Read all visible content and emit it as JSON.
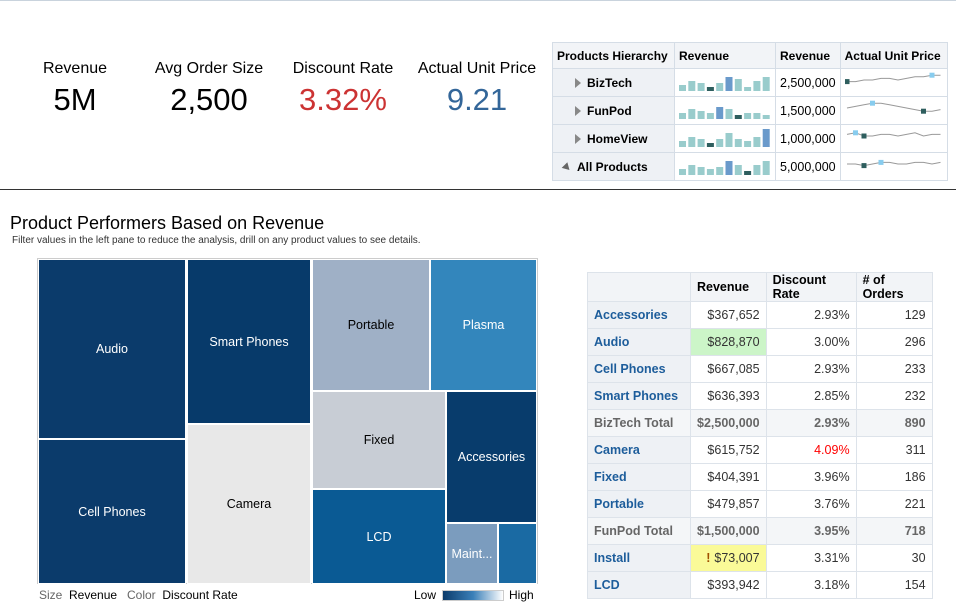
{
  "kpis": [
    {
      "label": "Revenue",
      "value": "5M",
      "color": "#000000"
    },
    {
      "label": "Avg Order Size",
      "value": "2,500",
      "color": "#000000"
    },
    {
      "label": "Discount Rate",
      "value": "3.32%",
      "color": "#cc3333"
    },
    {
      "label": "Actual Unit Price",
      "value": "9.21",
      "color": "#336699"
    }
  ],
  "hierarchy": {
    "headers": [
      "Products Hierarchy",
      "Revenue",
      "Revenue",
      "Actual Unit Price"
    ],
    "rows": [
      {
        "name": "BizTech",
        "revenue": "2,500,000",
        "expanded": false,
        "bars": [
          3,
          5,
          4,
          2,
          4,
          7,
          6,
          2,
          5,
          7,
          6,
          4
        ],
        "line": [
          4,
          4,
          5,
          5,
          6,
          6,
          5,
          6,
          7,
          7,
          8,
          8
        ]
      },
      {
        "name": "FunPod",
        "revenue": "1,500,000",
        "expanded": false,
        "bars": [
          3,
          5,
          4,
          3,
          6,
          5,
          2,
          3,
          3,
          2,
          2,
          2
        ],
        "line": [
          5,
          6,
          7,
          8,
          8,
          7,
          6,
          5,
          4,
          3,
          3,
          4
        ]
      },
      {
        "name": "HomeView",
        "revenue": "1,000,000",
        "expanded": false,
        "bars": [
          3,
          5,
          4,
          2,
          4,
          7,
          4,
          3,
          5,
          9,
          6,
          4
        ],
        "line": [
          6,
          7,
          5,
          5,
          6,
          6,
          5,
          6,
          7,
          5,
          6,
          6
        ]
      },
      {
        "name": "All Products",
        "revenue": "5,000,000",
        "expanded": true,
        "bars": [
          3,
          5,
          4,
          3,
          4,
          7,
          5,
          2,
          5,
          7,
          6,
          4
        ],
        "line": [
          5,
          5,
          4,
          5,
          6,
          6,
          5,
          5,
          6,
          6,
          5,
          6
        ]
      }
    ]
  },
  "treemap": {
    "title": "Product Performers Based on Revenue",
    "subtitle": "Filter values in the left pane to reduce the analysis, drill on any product values to see details.",
    "tiles": [
      {
        "label": "Audio",
        "color": "#0b3b6b",
        "text": "#ffffff"
      },
      {
        "label": "Cell Phones",
        "color": "#0b3b6b",
        "text": "#ffffff"
      },
      {
        "label": "Smart Phones",
        "color": "#073a6a",
        "text": "#ffffff"
      },
      {
        "label": "Camera",
        "color": "#e8e8e8",
        "text": "#000000"
      },
      {
        "label": "Portable",
        "color": "#9fb0c6",
        "text": "#000000"
      },
      {
        "label": "Plasma",
        "color": "#3386bc",
        "text": "#ffffff"
      },
      {
        "label": "Fixed",
        "color": "#c8cdd5",
        "text": "#000000"
      },
      {
        "label": "Accessories",
        "color": "#083c6c",
        "text": "#ffffff"
      },
      {
        "label": "LCD",
        "color": "#0a5a94",
        "text": "#ffffff"
      },
      {
        "label": "Maint...",
        "color": "#7b9cbe",
        "text": "#ffffff"
      },
      {
        "label": "",
        "color": "#1a6aa3",
        "text": "#ffffff"
      }
    ],
    "legend": {
      "size_label": "Size",
      "size_value": "Revenue",
      "color_label": "Color",
      "color_value": "Discount Rate",
      "low": "Low",
      "high": "High"
    }
  },
  "table": {
    "headers": [
      "",
      "Revenue",
      "Discount Rate",
      "# of Orders"
    ],
    "rows": [
      {
        "name": "Accessories",
        "revenue": "$367,652",
        "discount": "2.93%",
        "orders": "129"
      },
      {
        "name": "Audio",
        "revenue": "$828,870",
        "discount": "3.00%",
        "orders": "296",
        "highlight": "#ccf5c8"
      },
      {
        "name": "Cell Phones",
        "revenue": "$667,085",
        "discount": "2.93%",
        "orders": "233"
      },
      {
        "name": "Smart Phones",
        "revenue": "$636,393",
        "discount": "2.85%",
        "orders": "232"
      },
      {
        "name": "BizTech Total",
        "revenue": "$2,500,000",
        "discount": "2.93%",
        "orders": "890",
        "total": true
      },
      {
        "name": "Camera",
        "revenue": "$615,752",
        "discount": "4.09%",
        "orders": "311",
        "discount_color": "#ff0000"
      },
      {
        "name": "Fixed",
        "revenue": "$404,391",
        "discount": "3.96%",
        "orders": "186"
      },
      {
        "name": "Portable",
        "revenue": "$479,857",
        "discount": "3.76%",
        "orders": "221"
      },
      {
        "name": "FunPod Total",
        "revenue": "$1,500,000",
        "discount": "3.95%",
        "orders": "718",
        "total": true
      },
      {
        "name": "Install",
        "revenue": "$73,007",
        "discount": "3.31%",
        "orders": "30",
        "highlight": "#fafa98",
        "warning": true
      },
      {
        "name": "LCD",
        "revenue": "$393,942",
        "discount": "3.18%",
        "orders": "154"
      }
    ]
  }
}
